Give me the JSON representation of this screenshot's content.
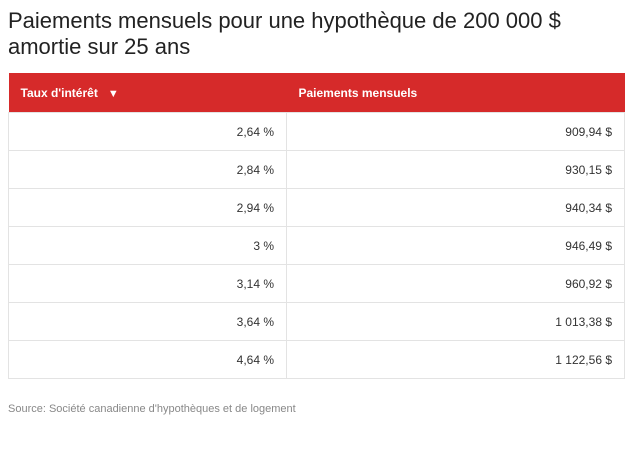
{
  "title": "Paiements mensuels pour une hypothèque de 200 000 $ amortie sur 25 ans",
  "table": {
    "headers": {
      "rate": "Taux d'intérêt",
      "sort_arrow": "▼",
      "payment": "Paiements mensuels"
    },
    "rows": [
      {
        "rate": "2,64 %",
        "payment": "909,94 $"
      },
      {
        "rate": "2,84 %",
        "payment": "930,15 $"
      },
      {
        "rate": "2,94 %",
        "payment": "940,34 $"
      },
      {
        "rate": "3 %",
        "payment": "946,49 $"
      },
      {
        "rate": "3,14 %",
        "payment": "960,92 $"
      },
      {
        "rate": "3,64 %",
        "payment": "1 013,38 $"
      },
      {
        "rate": "4,64 %",
        "payment": "1 122,56 $"
      }
    ]
  },
  "source": "Source: Société canadienne d'hypothèques et de logement",
  "colors": {
    "header_bg": "#d62a2a",
    "header_text": "#ffffff",
    "border": "#e3e3e3"
  }
}
